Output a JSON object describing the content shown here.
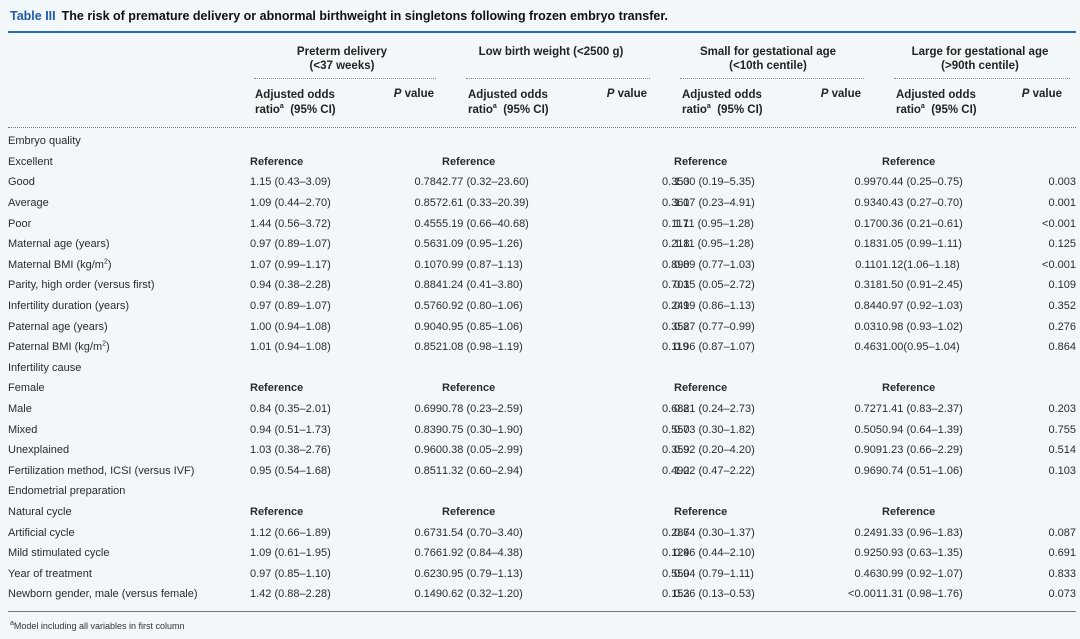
{
  "title": {
    "label": "Table III",
    "text": "The risk of premature delivery or abnormal birthweight in singletons following frozen embryo transfer."
  },
  "groups": [
    {
      "line1": "Preterm delivery",
      "line2": "(<37 weeks)"
    },
    {
      "line1": "Low birth weight (<2500 g)",
      "line2": ""
    },
    {
      "line1": "Small for gestational age",
      "line2": "(<10th centile)"
    },
    {
      "line1": "Large for gestational age",
      "line2": "(>90th centile)"
    }
  ],
  "subheader": {
    "aor_line1": "Adjusted odds",
    "aor_ratio": "ratio",
    "aor_sup": "a",
    "aor_ci": "(95% CI)",
    "p_italic": "P",
    "p_rest": " value"
  },
  "rows": [
    {
      "type": "section",
      "label": "Embryo quality"
    },
    {
      "type": "ref",
      "label": "Excellent",
      "ref_text": "Reference"
    },
    {
      "type": "data",
      "label": "Good",
      "indent": true,
      "cells": [
        [
          "1.15 (0.43–3.09)",
          "0.784"
        ],
        [
          "2.77 (0.32–23.60)",
          "0.353"
        ],
        [
          "1.00 (0.19–5.35)",
          "0.997"
        ],
        [
          "0.44 (0.25–0.75)",
          "0.003"
        ]
      ]
    },
    {
      "type": "data",
      "label": "Average",
      "indent": true,
      "cells": [
        [
          "1.09 (0.44–2.70)",
          "0.857"
        ],
        [
          "2.61 (0.33–20.39)",
          "0.361"
        ],
        [
          "1.07 (0.23–4.91)",
          "0.934"
        ],
        [
          "0.43 (0.27–0.70)",
          "0.001"
        ]
      ]
    },
    {
      "type": "data",
      "label": "Poor",
      "indent": true,
      "cells": [
        [
          "1.44 (0.56–3.72)",
          "0.455"
        ],
        [
          "5.19 (0.66–40.68)",
          "0.117"
        ],
        [
          "1.11 (0.95–1.28)",
          "0.170"
        ],
        [
          "0.36 (0.21–0.61)",
          "<0.001"
        ]
      ]
    },
    {
      "type": "data",
      "label": "Maternal age (years)",
      "indent": false,
      "cells": [
        [
          "0.97 (0.89–1.07)",
          "0.563"
        ],
        [
          "1.09 (0.95–1.26)",
          "0.218"
        ],
        [
          "1.11 (0.95–1.28)",
          "0.183"
        ],
        [
          "1.05 (0.99–1.11)",
          "0.125"
        ]
      ]
    },
    {
      "type": "data",
      "label": "Maternal BMI (kg/m",
      "label_sup": "2",
      "label_tail": ")",
      "indent": false,
      "cells": [
        [
          "1.07 (0.99–1.17)",
          "0.107"
        ],
        [
          "0.99 (0.87–1.13)",
          "0.890"
        ],
        [
          "0.89 (0.77–1.03)",
          "0.110"
        ],
        [
          "1.12(1.06–1.18)",
          "<0.001"
        ]
      ]
    },
    {
      "type": "data",
      "label": "Parity, high order (versus first)",
      "indent": false,
      "cells": [
        [
          "0.94 (0.38–2.28)",
          "0.884"
        ],
        [
          "1.24 (0.41–3.80)",
          "0.701"
        ],
        [
          "0.35 (0.05–2.72)",
          "0.318"
        ],
        [
          "1.50 (0.91–2.45)",
          "0.109"
        ]
      ]
    },
    {
      "type": "data",
      "label": "Infertility duration (years)",
      "indent": false,
      "cells": [
        [
          "0.97 (0.89–1.07)",
          "0.576"
        ],
        [
          "0.92 (0.80–1.06)",
          "0.241"
        ],
        [
          "0.99 (0.86–1.13)",
          "0.844"
        ],
        [
          "0.97 (0.92–1.03)",
          "0.352"
        ]
      ]
    },
    {
      "type": "data",
      "label": "Paternal age (years)",
      "indent": false,
      "cells": [
        [
          "1.00 (0.94–1.08)",
          "0.904"
        ],
        [
          "0.95 (0.85–1.06)",
          "0.352"
        ],
        [
          "0.87 (0.77–0.99)",
          "0.031"
        ],
        [
          "0.98 (0.93–1.02)",
          "0.276"
        ]
      ]
    },
    {
      "type": "data",
      "label": "Paternal BMI (kg/m",
      "label_sup": "2",
      "label_tail": ")",
      "indent": false,
      "cells": [
        [
          "1.01 (0.94–1.08)",
          "0.852"
        ],
        [
          "1.08 (0.98–1.19)",
          "0.119"
        ],
        [
          "0.96 (0.87–1.07)",
          "0.463"
        ],
        [
          "1.00(0.95–1.04)",
          "0.864"
        ]
      ]
    },
    {
      "type": "section",
      "label": "Infertility cause"
    },
    {
      "type": "ref",
      "label": "Female",
      "ref_text": "Reference"
    },
    {
      "type": "data",
      "label": "Male",
      "indent": true,
      "cells": [
        [
          "0.84 (0.35–2.01)",
          "0.699"
        ],
        [
          "0.78 (0.23–2.59)",
          "0.682"
        ],
        [
          "0.81 (0.24–2.73)",
          "0.727"
        ],
        [
          "1.41 (0.83–2.37)",
          "0.203"
        ]
      ]
    },
    {
      "type": "data",
      "label": "Mixed",
      "indent": true,
      "cells": [
        [
          "0.94 (0.51–1.73)",
          "0.839"
        ],
        [
          "0.75 (0.30–1.90)",
          "0.550"
        ],
        [
          "0.73 (0.30–1.82)",
          "0.505"
        ],
        [
          "0.94 (0.64–1.39)",
          "0.755"
        ]
      ]
    },
    {
      "type": "data",
      "label": "Unexplained",
      "indent": true,
      "cells": [
        [
          "1.03 (0.38–2.76)",
          "0.960"
        ],
        [
          "0.38 (0.05–2.99)",
          "0.359"
        ],
        [
          "0.92 (0.20–4.20)",
          "0.909"
        ],
        [
          "1.23 (0.66–2.29)",
          "0.514"
        ]
      ]
    },
    {
      "type": "data",
      "label": "Fertilization method, ICSI (versus IVF)",
      "indent": false,
      "cells": [
        [
          "0.95 (0.54–1.68)",
          "0.851"
        ],
        [
          "1.32 (0.60–2.94)",
          "0.492"
        ],
        [
          "1.02 (0.47–2.22)",
          "0.969"
        ],
        [
          "0.74 (0.51–1.06)",
          "0.103"
        ]
      ]
    },
    {
      "type": "section",
      "label": "Endometrial preparation"
    },
    {
      "type": "ref",
      "label": "Natural cycle",
      "ref_text": "Reference"
    },
    {
      "type": "data",
      "label": "Artificial cycle",
      "indent": true,
      "cells": [
        [
          "1.12 (0.66–1.89)",
          "0.673"
        ],
        [
          "1.54 (0.70–3.40)",
          "0.287"
        ],
        [
          "0.64 (0.30–1.37)",
          "0.249"
        ],
        [
          "1.33 (0.96–1.83)",
          "0.087"
        ]
      ]
    },
    {
      "type": "data",
      "label": "Mild stimulated cycle",
      "indent": true,
      "cells": [
        [
          "1.09 (0.61–1.95)",
          "0.766"
        ],
        [
          "1.92 (0.84–4.38)",
          "0.124"
        ],
        [
          "0.96 (0.44–2.10)",
          "0.925"
        ],
        [
          "0.93 (0.63–1.35)",
          "0.691"
        ]
      ]
    },
    {
      "type": "data",
      "label": "Year of treatment",
      "indent": false,
      "cells": [
        [
          "0.97 (0.85–1.10)",
          "0.623"
        ],
        [
          "0.95 (0.79–1.13)",
          "0.550"
        ],
        [
          "0.94 (0.79–1.11)",
          "0.463"
        ],
        [
          "0.99 (0.92–1.07)",
          "0.833"
        ]
      ]
    },
    {
      "type": "data",
      "label": "Newborn gender, male (versus female)",
      "indent": false,
      "cells": [
        [
          "1.42 (0.88–2.28)",
          "0.149"
        ],
        [
          "0.62 (0.32–1.20)",
          "0.153"
        ],
        [
          "0.26 (0.13–0.53)",
          "<0.001"
        ],
        [
          "1.31 (0.98–1.76)",
          "0.073"
        ]
      ]
    }
  ],
  "footnote": {
    "sup": "a",
    "text": "Model including all variables in first column"
  }
}
